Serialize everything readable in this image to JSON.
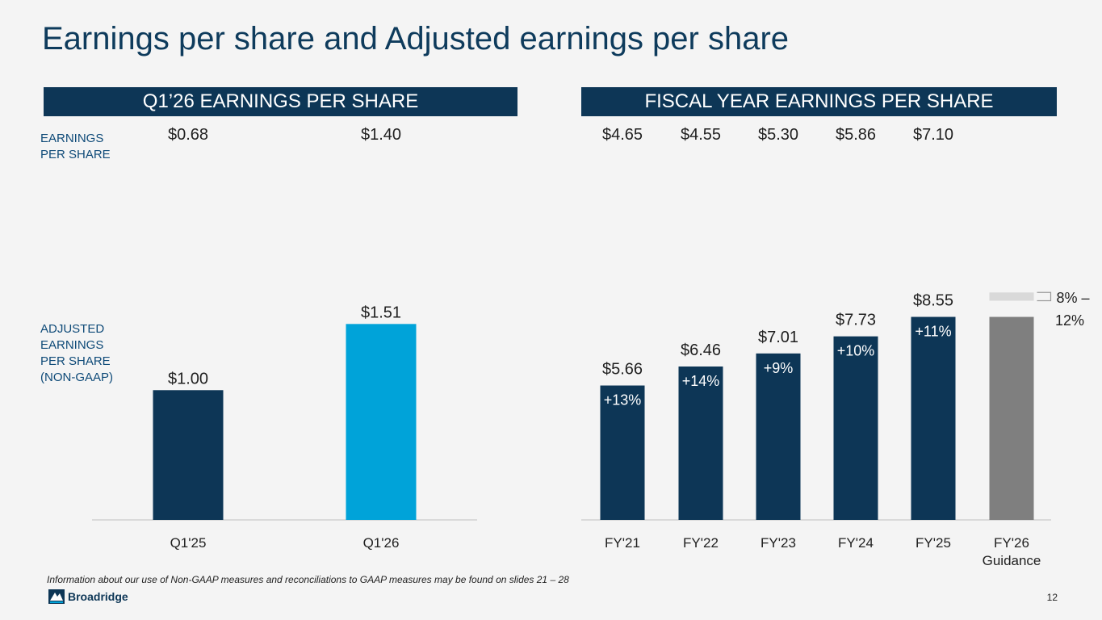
{
  "title": "Earnings per share and Adjusted earnings per share",
  "quarter_panel": {
    "heading": "Q1’26 EARNINGS PER SHARE",
    "eps_values": [
      "$0.68",
      "$1.40"
    ]
  },
  "fiscal_panel": {
    "heading": "FISCAL YEAR EARNINGS PER SHARE",
    "eps_values": [
      "$4.65",
      "$4.55",
      "$5.30",
      "$5.86",
      "$7.10"
    ]
  },
  "side_labels": {
    "eps": "EARNINGS PER SHARE",
    "adjusted": "ADJUSTED EARNINGS PER SHARE (NON-GAAP)"
  },
  "colors": {
    "navy": "#0d3656",
    "bright_blue": "#00a3d9",
    "guidance_gray": "#7f7f7f",
    "guidance_light": "#d9d9d9",
    "title": "#0e3b5c"
  },
  "chart_data": [
    {
      "type": "bar",
      "title": "Q1’26 EARNINGS PER SHARE",
      "ylabel": "ADJUSTED EARNINGS PER SHARE (NON-GAAP)",
      "categories": [
        "Q1'25",
        "Q1'26"
      ],
      "values": [
        1.0,
        1.51
      ],
      "value_labels": [
        "$1.00",
        "$1.51"
      ],
      "bar_colors": [
        "navy",
        "bright_blue"
      ],
      "ylim": [
        0,
        2.8
      ]
    },
    {
      "type": "bar",
      "title": "FISCAL YEAR EARNINGS PER SHARE",
      "ylabel": "ADJUSTED EARNINGS PER SHARE (NON-GAAP)",
      "categories": [
        "FY'21",
        "FY'22",
        "FY'23",
        "FY'24",
        "FY'25",
        "FY'26 Guidance"
      ],
      "values": [
        5.66,
        6.46,
        7.01,
        7.73,
        8.55,
        8.55
      ],
      "value_labels": [
        "$5.66",
        "$6.46",
        "$7.01",
        "$7.73",
        "$8.55",
        ""
      ],
      "growth_labels": [
        "+13%",
        "+14%",
        "+9%",
        "+10%",
        "+11%",
        ""
      ],
      "guidance_range": {
        "low": 9.23,
        "high": 9.58,
        "label": "8% – 12%"
      },
      "ylim": [
        0,
        15.3
      ]
    }
  ],
  "footnote": "Information about our use of Non-GAAP measures and reconciliations to GAAP measures may be found on slides 21 – 28",
  "logo_text": "Broadridge",
  "page_number": "12"
}
